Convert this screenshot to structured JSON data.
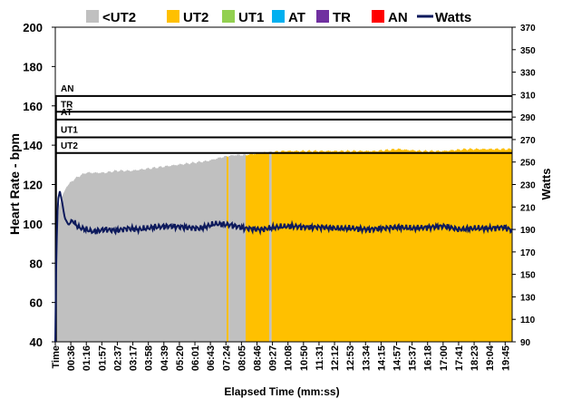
{
  "chart_data": {
    "type": "area",
    "xlabel": "Elapsed Time (mm:ss)",
    "ylabel": "Heart Rate - bpm",
    "y2label": "Watts",
    "ylim": [
      40,
      200
    ],
    "y2lim": [
      90,
      370
    ],
    "x_duration_seconds": 1200,
    "yticks": [
      40,
      60,
      80,
      100,
      120,
      140,
      160,
      180,
      200
    ],
    "y2ticks": [
      90,
      110,
      130,
      150,
      170,
      190,
      210,
      230,
      250,
      270,
      290,
      310,
      330,
      350,
      370
    ],
    "xticks": [
      "Time",
      "00:36",
      "01:16",
      "01:57",
      "02:37",
      "03:17",
      "03:58",
      "04:39",
      "05:20",
      "06:01",
      "06:43",
      "07:24",
      "08:05",
      "08:46",
      "09:27",
      "10:08",
      "10:50",
      "11:31",
      "12:12",
      "12:53",
      "13:34",
      "14:15",
      "14:57",
      "15:37",
      "16:18",
      "17:00",
      "17:41",
      "18:23",
      "19:04",
      "19:45"
    ],
    "legend": [
      {
        "name": "<UT2",
        "color": "#c0c0c0",
        "type": "area"
      },
      {
        "name": "UT2",
        "color": "#ffc000",
        "type": "area"
      },
      {
        "name": "UT1",
        "color": "#92d050",
        "type": "area"
      },
      {
        "name": "AT",
        "color": "#00b0f0",
        "type": "area"
      },
      {
        "name": "TR",
        "color": "#7030a0",
        "type": "area"
      },
      {
        "name": "AN",
        "color": "#ff0000",
        "type": "area"
      },
      {
        "name": "Watts",
        "color": "#0d1a5c",
        "type": "line"
      }
    ],
    "zones": [
      {
        "name": "UT2",
        "threshold_bpm": 136
      },
      {
        "name": "UT1",
        "threshold_bpm": 144
      },
      {
        "name": "AT",
        "threshold_bpm": 153
      },
      {
        "name": "TR",
        "threshold_bpm": 157
      },
      {
        "name": "AN",
        "threshold_bpm": 165
      }
    ],
    "heart_rate": {
      "t": [
        0,
        4,
        10,
        20,
        30,
        45,
        60,
        80,
        100,
        130,
        160,
        200,
        240,
        280,
        320,
        360,
        400,
        440,
        470,
        500,
        540,
        600,
        660,
        720,
        780,
        840,
        900,
        960,
        1020,
        1080,
        1140,
        1170,
        1200
      ],
      "bpm": [
        40,
        96,
        109,
        115,
        119,
        122,
        124,
        126,
        126,
        126,
        127,
        127,
        128,
        129,
        130,
        131,
        132,
        134,
        135,
        135,
        136,
        137,
        137,
        137,
        137,
        137,
        138,
        137,
        137,
        138,
        138,
        138,
        138
      ]
    },
    "hr_zone_segments": [
      {
        "from": 0,
        "to": 450,
        "zone": "<UT2"
      },
      {
        "from": 450,
        "to": 455,
        "zone": "UT2"
      },
      {
        "from": 455,
        "to": 500,
        "zone": "<UT2"
      },
      {
        "from": 500,
        "to": 562,
        "zone": "UT2"
      },
      {
        "from": 562,
        "to": 568,
        "zone": "<UT2"
      },
      {
        "from": 568,
        "to": 1200,
        "zone": "UT2"
      }
    ],
    "watts": {
      "t": [
        0,
        2,
        5,
        8,
        12,
        18,
        25,
        35,
        45,
        60,
        80,
        100,
        130,
        160,
        190,
        220,
        260,
        300,
        340,
        380,
        420,
        460,
        500,
        540,
        580,
        620,
        660,
        700,
        740,
        780,
        820,
        860,
        900,
        940,
        980,
        1020,
        1060,
        1100,
        1140,
        1180,
        1200
      ],
      "w": [
        90,
        150,
        200,
        218,
        224,
        214,
        200,
        194,
        198,
        192,
        190,
        188,
        190,
        189,
        191,
        190,
        192,
        193,
        192,
        191,
        195,
        194,
        191,
        190,
        192,
        193,
        192,
        192,
        191,
        191,
        190,
        191,
        192,
        191,
        192,
        193,
        190,
        191,
        191,
        192,
        189
      ]
    }
  }
}
